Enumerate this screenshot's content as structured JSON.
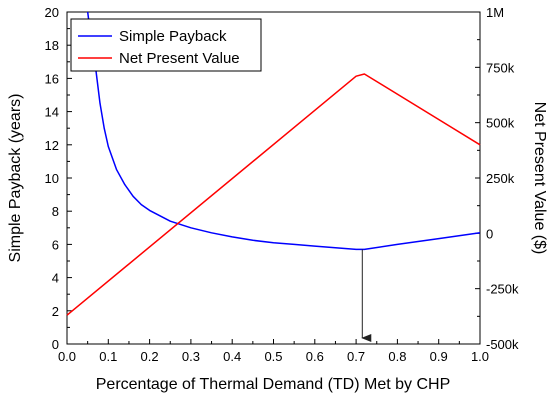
{
  "chart_data": {
    "type": "line",
    "xlabel": "Percentage of Thermal Demand (TD) Met by CHP",
    "ylabel_left": "Simple Payback (years)",
    "ylabel_right": "Net Present Value ($)",
    "xlim": [
      0.0,
      1.0
    ],
    "ylim_left": [
      0,
      20
    ],
    "ylim_right": [
      -500000,
      1000000
    ],
    "x_ticks": [
      "0.0",
      "0.1",
      "0.2",
      "0.3",
      "0.4",
      "0.5",
      "0.6",
      "0.7",
      "0.8",
      "0.9",
      "1.0"
    ],
    "y_left_ticks": [
      "0",
      "2",
      "4",
      "6",
      "8",
      "10",
      "12",
      "14",
      "16",
      "18",
      "20"
    ],
    "y_right_ticks": [
      "-500k",
      "-250k",
      "0",
      "250k",
      "500k",
      "750k",
      "1M"
    ],
    "legend_position": "top-left",
    "grid": false,
    "series": [
      {
        "name": "Simple Payback",
        "axis": "left",
        "color": "#0000ff",
        "x": [
          0.05,
          0.06,
          0.07,
          0.08,
          0.09,
          0.1,
          0.12,
          0.14,
          0.16,
          0.18,
          0.2,
          0.25,
          0.3,
          0.35,
          0.4,
          0.45,
          0.5,
          0.55,
          0.6,
          0.65,
          0.7,
          0.72,
          0.8,
          0.9,
          1.0
        ],
        "values": [
          20,
          18,
          16.5,
          14.5,
          13.0,
          11.9,
          10.5,
          9.6,
          8.9,
          8.4,
          8.05,
          7.4,
          7.0,
          6.7,
          6.45,
          6.25,
          6.1,
          6.0,
          5.9,
          5.8,
          5.7,
          5.7,
          6.0,
          6.35,
          6.7
        ]
      },
      {
        "name": "Net Present Value",
        "axis": "right",
        "color": "#ff0000",
        "x": [
          0.0,
          0.7,
          0.72,
          1.0
        ],
        "values": [
          -370000,
          710000,
          720000,
          400000
        ]
      }
    ],
    "annotations": [
      {
        "type": "arrow",
        "x": 0.715,
        "from_left_y": 5.7,
        "to_left_y": 0
      }
    ]
  }
}
